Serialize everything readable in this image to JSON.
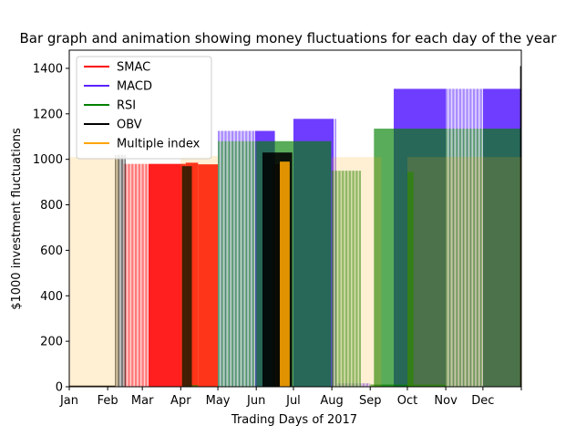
{
  "chart_data": {
    "type": "bar",
    "title": "Bar graph and animation showing money fluctuations for each day of the year",
    "xlabel": "Trading Days of 2017",
    "ylabel": "$1000 investment fluctuations",
    "xlim": [
      "2017-01-01",
      "2018-01-01"
    ],
    "ylim": [
      0,
      1480
    ],
    "yticks": [
      0,
      200,
      400,
      600,
      800,
      1000,
      1200,
      1400
    ],
    "xtick_labels": [
      "Jan",
      "Feb",
      "Mar",
      "Apr",
      "May",
      "Jun",
      "Jul",
      "Aug",
      "Sep",
      "Oct",
      "Nov",
      "Dec"
    ],
    "xtick_dates": [
      "2017-01-01",
      "2017-02-01",
      "2017-03-01",
      "2017-04-01",
      "2017-05-01",
      "2017-06-01",
      "2017-07-01",
      "2017-08-01",
      "2017-09-01",
      "2017-10-01",
      "2017-11-01",
      "2017-12-01",
      "2018-01-01"
    ],
    "grid": false,
    "legend_position": "top-left",
    "series": [
      {
        "name": "SMAC",
        "color": "#ff0000",
        "segments": [
          {
            "start": "2017-02-14",
            "end": "2017-03-06",
            "value": 980,
            "style": "sparse"
          },
          {
            "start": "2017-03-06",
            "end": "2017-04-05",
            "value": 980,
            "style": "solid"
          },
          {
            "start": "2017-04-05",
            "end": "2017-04-15",
            "value": 985,
            "style": "solid"
          },
          {
            "start": "2017-04-15",
            "end": "2017-05-01",
            "value": 978,
            "style": "solid"
          },
          {
            "start": "2017-06-14",
            "end": "2017-06-26",
            "value": 978,
            "style": "solid"
          }
        ]
      },
      {
        "name": "MACD",
        "color": "#5b22ff",
        "segments": [
          {
            "start": "2017-05-01",
            "end": "2017-05-31",
            "value": 1125,
            "style": "sparse"
          },
          {
            "start": "2017-05-31",
            "end": "2017-06-16",
            "value": 1125,
            "style": "solid"
          },
          {
            "start": "2017-07-01",
            "end": "2017-08-02",
            "value": 1178,
            "style": "solid"
          },
          {
            "start": "2017-08-02",
            "end": "2017-08-05",
            "value": 1178,
            "style": "sparse"
          },
          {
            "start": "2017-08-05",
            "end": "2017-09-01",
            "value": 15,
            "style": "sparse"
          },
          {
            "start": "2017-09-20",
            "end": "2017-11-01",
            "value": 1310,
            "style": "solid"
          },
          {
            "start": "2017-11-01",
            "end": "2017-12-01",
            "value": 1310,
            "style": "sparse"
          },
          {
            "start": "2017-12-01",
            "end": "2018-01-01",
            "value": 1310,
            "style": "solid"
          }
        ]
      },
      {
        "name": "RSI",
        "color": "#008000",
        "segments": [
          {
            "start": "2017-05-01",
            "end": "2017-06-01",
            "value": 1080,
            "style": "sparse"
          },
          {
            "start": "2017-06-01",
            "end": "2017-07-01",
            "value": 1080,
            "style": "solid"
          },
          {
            "start": "2017-07-01",
            "end": "2017-07-31",
            "value": 1080,
            "style": "solid"
          },
          {
            "start": "2017-07-31",
            "end": "2017-08-01",
            "value": 1080,
            "style": "sparse"
          },
          {
            "start": "2017-08-01",
            "end": "2017-08-25",
            "value": 950,
            "style": "sparse"
          },
          {
            "start": "2017-09-04",
            "end": "2017-11-01",
            "value": 1135,
            "style": "solid"
          },
          {
            "start": "2017-11-01",
            "end": "2017-12-01",
            "value": 1135,
            "style": "sparse"
          },
          {
            "start": "2017-12-01",
            "end": "2018-01-01",
            "value": 1135,
            "style": "solid"
          },
          {
            "start": "2017-10-01",
            "end": "2017-10-06",
            "value": 945,
            "style": "solid"
          },
          {
            "start": "2017-04-05",
            "end": "2017-04-15",
            "value": 8,
            "style": "solid"
          },
          {
            "start": "2017-09-01",
            "end": "2017-11-01",
            "value": 10,
            "style": "solid"
          }
        ]
      },
      {
        "name": "OBV",
        "color": "#000000",
        "segments": [
          {
            "start": "2017-01-01",
            "end": "2017-02-07",
            "value": 5,
            "style": "solid"
          },
          {
            "start": "2017-02-07",
            "end": "2017-02-16",
            "value": 1020,
            "style": "sparse"
          },
          {
            "start": "2017-04-02",
            "end": "2017-04-10",
            "value": 970,
            "style": "solid"
          },
          {
            "start": "2017-06-06",
            "end": "2017-06-30",
            "value": 1030,
            "style": "solid"
          },
          {
            "start": "2017-12-31",
            "end": "2018-01-01",
            "value": 1410,
            "style": "solid"
          }
        ]
      },
      {
        "name": "Multiple index",
        "color": "#ffa500",
        "segments": [
          {
            "start": "2017-01-01",
            "end": "2017-02-10",
            "value": 1010,
            "style": "light"
          },
          {
            "start": "2017-04-01",
            "end": "2017-05-01",
            "value": 1015,
            "style": "light"
          },
          {
            "start": "2017-06-20",
            "end": "2017-06-28",
            "value": 990,
            "style": "solid"
          },
          {
            "start": "2017-08-01",
            "end": "2017-09-10",
            "value": 1010,
            "style": "light"
          },
          {
            "start": "2017-10-01",
            "end": "2018-01-01",
            "value": 1010,
            "style": "light"
          }
        ]
      }
    ]
  }
}
